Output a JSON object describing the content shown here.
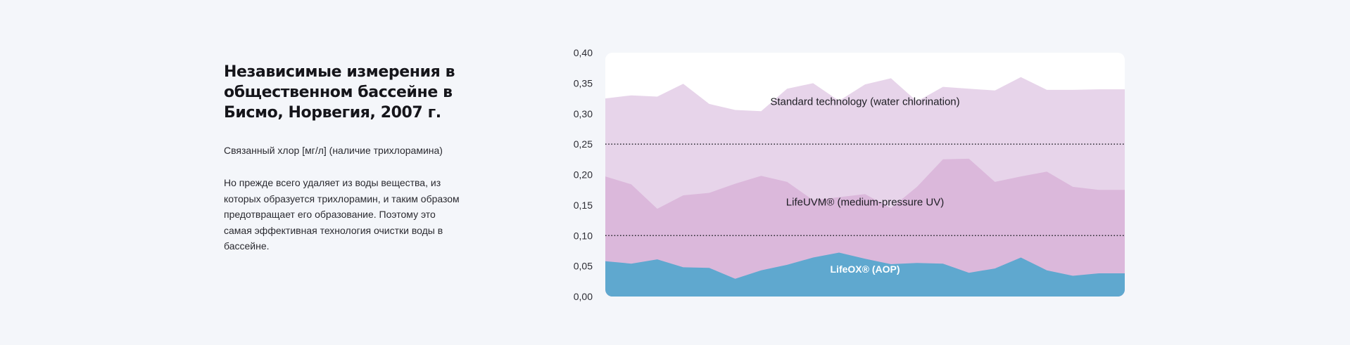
{
  "heading": {
    "title_lines": [
      "Независимые измерения в",
      "общественном бассейне в",
      "Бисмо, Норвегия, 2007 г."
    ],
    "subtitle": "Связанный хлор [мг/л] (наличие трихлорамина)",
    "description": "Но прежде всего удаляет из воды вещества, из которых образуется трихлорамин, и таким образом предотвращает его образование. Поэтому это самая эффективная технология очистки воды в бассейне."
  },
  "chart_data": {
    "type": "area",
    "title": "",
    "xlabel": "",
    "ylabel": "",
    "ylim": [
      0,
      0.4
    ],
    "yticks": [
      "0,00",
      "0,05",
      "0,10",
      "0,15",
      "0,20",
      "0,25",
      "0,30",
      "0,35",
      "0,40"
    ],
    "yticks_values": [
      0,
      0.05,
      0.1,
      0.15,
      0.2,
      0.25,
      0.3,
      0.35,
      0.4
    ],
    "grid": false,
    "reference_lines": [
      0.1,
      0.25
    ],
    "x": [
      0,
      1,
      2,
      3,
      4,
      5,
      6,
      7,
      8,
      9,
      10,
      11,
      12,
      13,
      14,
      15,
      16,
      17,
      18,
      19,
      20
    ],
    "series": [
      {
        "name": "Standard technology (water chlorination)",
        "color": "#e7d4ea",
        "values": [
          0.325,
          0.33,
          0.328,
          0.349,
          0.316,
          0.306,
          0.304,
          0.341,
          0.35,
          0.321,
          0.348,
          0.358,
          0.32,
          0.344,
          0.341,
          0.338,
          0.36,
          0.339,
          0.339,
          0.34,
          0.34
        ]
      },
      {
        "name": "LifeUVM® (medium-pressure UV)",
        "color": "#dbb8db",
        "values": [
          0.197,
          0.184,
          0.144,
          0.166,
          0.17,
          0.185,
          0.198,
          0.188,
          0.158,
          0.163,
          0.168,
          0.145,
          0.18,
          0.225,
          0.226,
          0.188,
          0.197,
          0.205,
          0.18,
          0.175,
          0.175
        ]
      },
      {
        "name": "LifeOX® (AOP)",
        "color": "#5fa8cf",
        "values": [
          0.058,
          0.054,
          0.061,
          0.048,
          0.047,
          0.029,
          0.043,
          0.052,
          0.064,
          0.072,
          0.062,
          0.053,
          0.055,
          0.054,
          0.039,
          0.046,
          0.064,
          0.043,
          0.034,
          0.038,
          0.038
        ]
      }
    ]
  }
}
